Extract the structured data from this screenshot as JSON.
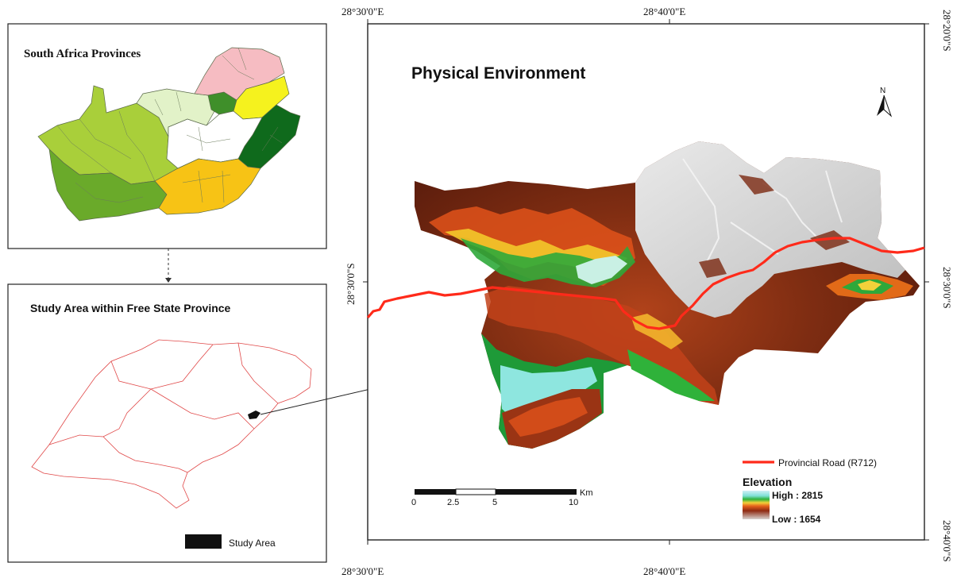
{
  "inset_top": {
    "title": "South Africa Provinces"
  },
  "inset_bottom": {
    "title": "Study Area within Free State Province",
    "legend_label": "Study Area"
  },
  "main_map": {
    "title": "Physical Environment",
    "north_label": "N",
    "coords": {
      "top_left": "28°30'0\"E",
      "top_mid": "28°40'0\"E",
      "bottom_left": "28°30'0\"E",
      "bottom_mid": "28°40'0\"E",
      "right_top": "28°20'0\"S",
      "right_mid": "28°30'0\"S",
      "right_bottom": "28°40'0\"S",
      "left_mid": "28°30'0\"S"
    },
    "scale_bar": {
      "unit": "Km",
      "ticks": [
        "0",
        "2.5",
        "5",
        "10"
      ]
    },
    "legend": {
      "road_label": "Provincial Road (R712)",
      "elevation_title": "Elevation",
      "high_label": "High : 2815",
      "low_label": "Low : 1654"
    }
  },
  "colors": {
    "road": "#ff2a1a",
    "outline": "#e04848",
    "western_cape": "#6aaa2a",
    "northern_cape": "#a9cf3a",
    "north_west": "#e2f2c8",
    "gauteng": "#3f8f2a",
    "limpopo": "#f6bcc2",
    "mpumalanga": "#f5f21e",
    "kwazulu_natal": "#0f6a1c",
    "eastern_cape": "#f7c315",
    "free_state": "#ffffff"
  }
}
